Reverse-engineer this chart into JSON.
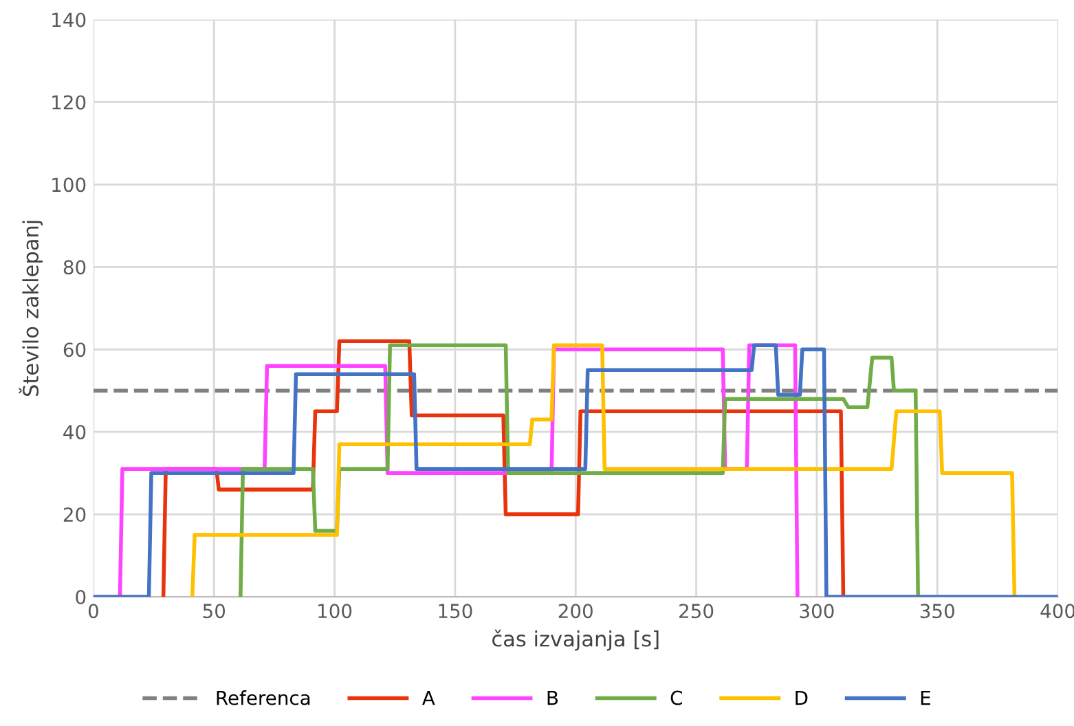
{
  "chart_data": {
    "type": "line",
    "xlabel": "čas izvajanja [s]",
    "ylabel": "Število zaklepanj",
    "xlim": [
      0,
      400
    ],
    "ylim": [
      0,
      140
    ],
    "xticks": [
      0,
      50,
      100,
      150,
      200,
      250,
      300,
      350,
      400
    ],
    "yticks": [
      0,
      20,
      40,
      60,
      80,
      100,
      120,
      140
    ],
    "grid": true,
    "legend": "bottom",
    "marker": "none",
    "line_style": "solid",
    "ref_lines": [
      {
        "axis": "y",
        "value": 50,
        "label": "Referenca",
        "color": "#808080",
        "line_style": "dashed"
      }
    ],
    "series": [
      {
        "name": "A",
        "color": "#e8340c",
        "x": [
          29,
          30,
          51,
          52,
          91,
          92,
          101,
          102,
          131,
          132,
          170,
          171,
          201,
          202,
          310,
          311
        ],
        "values": [
          0,
          31,
          31,
          26,
          26,
          45,
          45,
          62,
          62,
          44,
          44,
          20,
          20,
          45,
          45,
          0
        ]
      },
      {
        "name": "B",
        "color": "#ff44ff",
        "x": [
          11,
          12,
          71,
          72,
          121,
          122,
          190,
          191,
          261,
          262,
          271,
          272,
          291,
          292
        ],
        "values": [
          0,
          31,
          31,
          56,
          56,
          30,
          30,
          60,
          60,
          31,
          31,
          61,
          61,
          0
        ]
      },
      {
        "name": "C",
        "color": "#70ad47",
        "x": [
          61,
          62,
          91,
          92,
          101,
          102,
          122,
          123,
          171,
          172,
          261,
          262,
          311,
          313,
          321,
          323,
          331,
          332,
          341,
          342
        ],
        "values": [
          0,
          31,
          31,
          16,
          16,
          31,
          31,
          61,
          61,
          30,
          30,
          48,
          48,
          46,
          46,
          58,
          58,
          50,
          50,
          0
        ]
      },
      {
        "name": "D",
        "color": "#ffc000",
        "x": [
          41,
          42,
          101,
          102,
          181,
          182,
          190,
          191,
          211,
          212,
          331,
          333,
          351,
          352,
          381,
          382
        ],
        "values": [
          0,
          15,
          15,
          37,
          37,
          43,
          43,
          61,
          61,
          31,
          31,
          45,
          45,
          30,
          30,
          0
        ]
      },
      {
        "name": "E",
        "color": "#4472c4",
        "x": [
          0,
          23,
          24,
          83,
          84,
          133,
          134,
          204,
          205,
          273,
          274,
          283,
          284,
          293,
          294,
          303,
          304,
          400
        ],
        "values": [
          0,
          0,
          30,
          30,
          54,
          54,
          31,
          31,
          55,
          55,
          61,
          61,
          49,
          49,
          60,
          60,
          0,
          0
        ]
      }
    ]
  }
}
